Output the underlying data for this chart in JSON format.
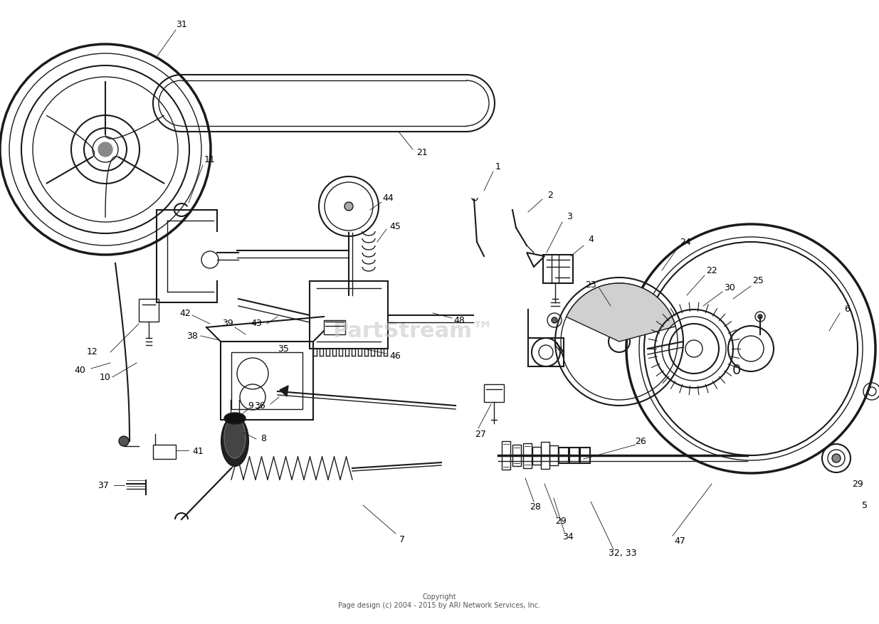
{
  "copyright": "Copyright\nPage design (c) 2004 - 2015 by ARI Network Services, Inc.",
  "watermark": "PartStream™",
  "background": "#ffffff",
  "line_color": "#1a1a1a"
}
